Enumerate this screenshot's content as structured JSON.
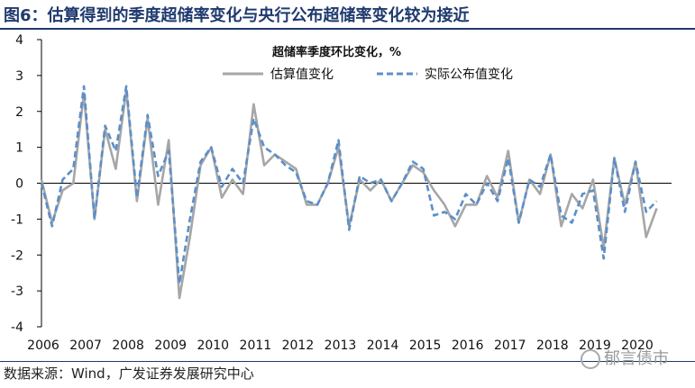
{
  "figure": {
    "title": "图6：估算得到的季度超储率变化与央行公布超储率变化较为接近",
    "source": "数据来源：Wind，广发证券发展研究中心",
    "watermark": "郁言债市"
  },
  "chart_data": {
    "type": "line",
    "title": "超储率季度环比变化，%",
    "x_tick_labels": [
      "2006",
      "2007",
      "2008",
      "2009",
      "2010",
      "2011",
      "2012",
      "2013",
      "2014",
      "2015",
      "2016",
      "2017",
      "2018",
      "2019",
      "2020"
    ],
    "ylim": [
      -4,
      4
    ],
    "yticks": [
      -4,
      -3,
      -2,
      -1,
      0,
      1,
      2,
      3,
      4
    ],
    "x_start": 2006.0,
    "x_step": 0.25,
    "legend_position": "top-center",
    "series": [
      {
        "name": "估算值变化",
        "color": "#a6a6a6",
        "style": "solid",
        "values": [
          0.1,
          -1.1,
          -0.2,
          0.0,
          2.5,
          -1.0,
          1.5,
          0.4,
          2.6,
          -0.5,
          1.8,
          -0.6,
          1.2,
          -3.2,
          -1.5,
          0.5,
          1.0,
          -0.4,
          0.1,
          -0.3,
          2.2,
          0.5,
          0.8,
          0.6,
          0.4,
          -0.6,
          -0.6,
          0.0,
          1.0,
          -1.2,
          0.1,
          -0.2,
          0.1,
          -0.5,
          0.0,
          0.5,
          0.3,
          -0.2,
          -0.6,
          -1.2,
          -0.6,
          -0.6,
          0.2,
          -0.4,
          0.9,
          -1.1,
          0.1,
          -0.3,
          0.8,
          -1.2,
          -0.3,
          -0.7,
          0.1,
          -1.8,
          0.7,
          -0.6,
          0.6,
          -1.5,
          -0.7
        ]
      },
      {
        "name": "实际公布值变化",
        "color": "#5b8fc9",
        "style": "dashed",
        "values": [
          0.0,
          -1.2,
          0.1,
          0.4,
          2.7,
          -1.0,
          1.6,
          0.9,
          2.7,
          -0.4,
          1.9,
          0.2,
          0.9,
          -2.8,
          -1.0,
          0.6,
          1.0,
          -0.1,
          0.4,
          0.0,
          1.8,
          1.0,
          0.8,
          0.5,
          0.3,
          -0.5,
          -0.6,
          0.0,
          1.2,
          -1.3,
          0.2,
          0.0,
          0.1,
          -0.5,
          0.0,
          0.6,
          0.4,
          -0.9,
          -0.8,
          -1.0,
          -0.3,
          -0.6,
          0.0,
          -0.5,
          0.7,
          -1.1,
          0.1,
          -0.1,
          0.8,
          -0.9,
          -1.1,
          -0.3,
          -0.2,
          -2.1,
          0.7,
          -0.8,
          0.6,
          -0.8,
          -0.5
        ]
      }
    ]
  }
}
